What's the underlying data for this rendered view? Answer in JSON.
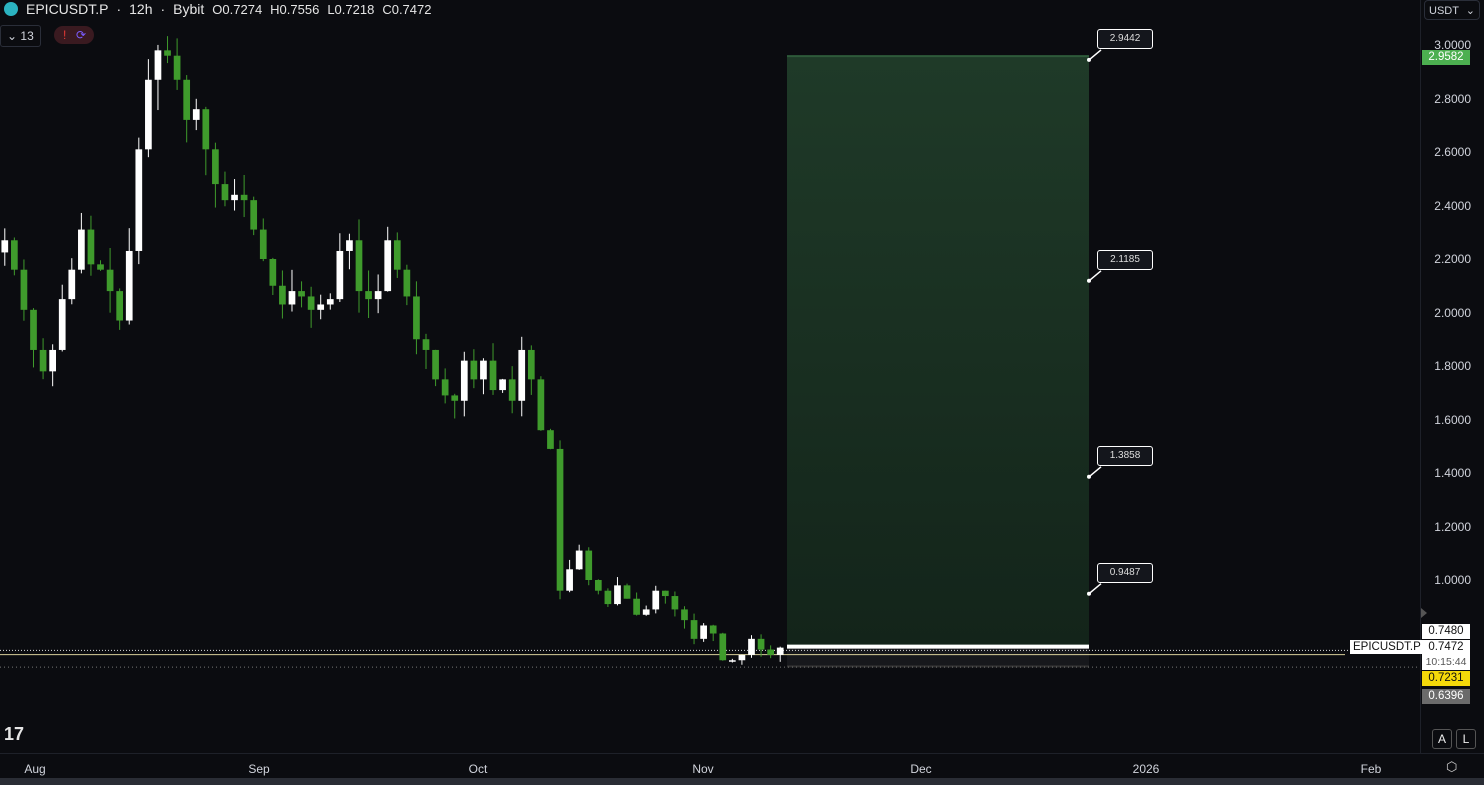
{
  "header": {
    "symbol": "EPICUSDT.P",
    "interval": "12h",
    "exchange": "Bybit",
    "open": "O0.7274",
    "high": "H0.7556",
    "low": "L0.7218",
    "close": "C0.7472",
    "separator": "·"
  },
  "indicators": {
    "count": "13",
    "alert_icon": "!"
  },
  "currency": "USDT",
  "price_badges": {
    "take_profit": "2.9582",
    "high": "0.7480",
    "last": "0.7472",
    "countdown": "10:15:44",
    "yellow": "0.7231",
    "grey": "0.6396",
    "symbol_label": "EPICUSDT.P"
  },
  "colors": {
    "up": "#ffffff",
    "down": "#3f9b2c",
    "target_zone": "#1a3020",
    "stop_zone": "#1a1b1f",
    "take_profit_badge": "#4caf50",
    "yellow_badge": "#f5d90a"
  },
  "axis_buttons": {
    "auto": "A",
    "log": "L"
  },
  "chart_data": {
    "type": "candlestick",
    "y_ticks": [
      "3.0000",
      "2.8000",
      "2.6000",
      "2.4000",
      "2.2000",
      "2.0000",
      "1.8000",
      "1.6000",
      "1.4000",
      "1.2000",
      "1.0000"
    ],
    "y_tick_values": [
      3.0,
      2.8,
      2.6,
      2.4,
      2.2,
      2.0,
      1.8,
      1.6,
      1.4,
      1.2,
      1.0
    ],
    "x_ticks": [
      "Aug",
      "Sep",
      "Oct",
      "Nov",
      "Dec",
      "2026",
      "Feb"
    ],
    "closes": [
      2.27,
      2.16,
      2.01,
      1.86,
      1.78,
      1.86,
      2.05,
      2.16,
      2.31,
      2.18,
      2.16,
      2.08,
      1.97,
      2.23,
      2.61,
      2.87,
      2.98,
      2.96,
      2.87,
      2.72,
      2.76,
      2.61,
      2.48,
      2.42,
      2.44,
      2.42,
      2.31,
      2.2,
      2.1,
      2.03,
      2.08,
      2.06,
      2.01,
      2.03,
      2.05,
      2.23,
      2.27,
      2.08,
      2.05,
      2.08,
      2.27,
      2.16,
      2.06,
      1.9,
      1.86,
      1.75,
      1.69,
      1.67,
      1.82,
      1.75,
      1.82,
      1.71,
      1.75,
      1.67,
      1.86,
      1.75,
      1.56,
      1.49,
      0.96,
      1.04,
      1.11,
      1.0,
      0.96,
      0.91,
      0.98,
      0.93,
      0.87,
      0.89,
      0.96,
      0.94,
      0.89,
      0.85,
      0.78,
      0.83,
      0.8,
      0.7,
      0.7,
      0.72,
      0.78,
      0.74,
      0.72,
      0.7472
    ],
    "ylim": [
      0.56,
      3.16
    ],
    "position_tool": {
      "entry": 0.7472,
      "stop": 0.6396,
      "target": 2.9582,
      "levels": [
        "2.9442",
        "2.1185",
        "1.3858",
        "0.9487"
      ],
      "level_values": [
        2.9442,
        2.1185,
        1.3858,
        0.9487
      ]
    },
    "horizontal_lines": [
      0.748,
      0.7231
    ]
  }
}
